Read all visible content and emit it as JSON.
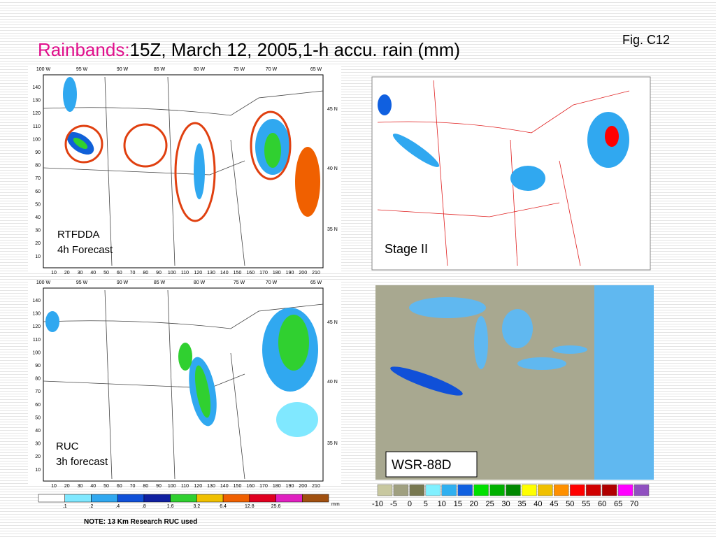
{
  "header": {
    "title_highlight": "Rainbands:",
    "title": "15Z, March 12, 2005,1-h accu. rain (mm)",
    "figure_label": "Fig. C12"
  },
  "panels": [
    {
      "label_lines": [
        "RTFDDA",
        "4h Forecast"
      ]
    },
    {
      "label": "Stage II"
    },
    {
      "label_lines": [
        "RUC",
        "3h forecast"
      ]
    },
    {
      "label": "WSR-88D"
    }
  ],
  "map_axes": {
    "longitude_labels": [
      "100 W",
      "95 W",
      "90 W",
      "85 W",
      "80 W",
      "75 W",
      "70 W",
      "65 W"
    ],
    "latitude_labels": [
      "45 N",
      "40 N",
      "35 N"
    ],
    "grid_y": [
      "140",
      "130",
      "120",
      "110",
      "100",
      "90",
      "80",
      "70",
      "60",
      "50",
      "40",
      "30",
      "20",
      "10"
    ],
    "grid_x": [
      "10",
      "20",
      "30",
      "40",
      "50",
      "60",
      "70",
      "80",
      "90",
      "100",
      "110",
      "120",
      "130",
      "140",
      "150",
      "160",
      "170",
      "180",
      "190",
      "200",
      "210"
    ]
  },
  "rain_scale": {
    "labels": [
      ".1",
      ".2",
      ".4",
      ".8",
      "1.6",
      "3.2",
      "6.4",
      "12.8",
      "25.6"
    ],
    "unit": "mm",
    "colors": [
      "#ffffff",
      "#80e8ff",
      "#30a8f0",
      "#1050d8",
      "#1020a0",
      "#30d030",
      "#f0c000",
      "#f06000",
      "#e00020",
      "#e020c0",
      "#a05010"
    ]
  },
  "radar_scale": {
    "labels": [
      "-10",
      "-5",
      "0",
      "5",
      "10",
      "15",
      "20",
      "25",
      "30",
      "35",
      "40",
      "45",
      "50",
      "55",
      "60",
      "65",
      "70"
    ],
    "colors": [
      "#c8c8a0",
      "#a0a080",
      "#787850",
      "#80f0ff",
      "#30b0f0",
      "#1060e0",
      "#00e000",
      "#00b000",
      "#008800",
      "#ffff00",
      "#f0c000",
      "#ff9000",
      "#ff0000",
      "#d00000",
      "#b00000",
      "#ff00ff",
      "#9050c0"
    ]
  },
  "note": "NOTE:  13 Km Research RUC used"
}
